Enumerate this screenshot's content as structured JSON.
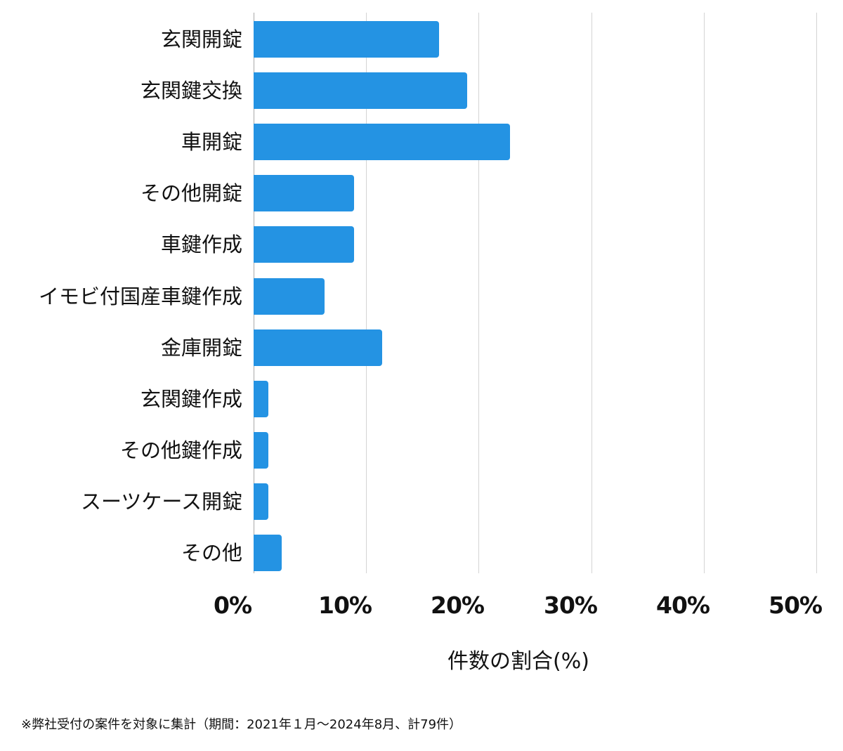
{
  "chart_data": {
    "type": "bar",
    "orientation": "horizontal",
    "title": "",
    "xlabel": "件数の割合(%)",
    "ylabel": "",
    "xlim": [
      0,
      50
    ],
    "x_ticks": [
      "0%",
      "10%",
      "20%",
      "30%",
      "40%",
      "50%"
    ],
    "grid": true,
    "legend": null,
    "bar_color": "#2493e3",
    "categories": [
      "玄関開錠",
      "玄関鍵交換",
      "車開錠",
      "その他開錠",
      "車鍵作成",
      "イモビ付国産車鍵作成",
      "金庫開錠",
      "玄関鍵作成",
      "その他鍵作成",
      "スーツケース開錠",
      "その他"
    ],
    "values": [
      16.5,
      19.0,
      22.8,
      8.9,
      8.9,
      6.3,
      11.4,
      1.3,
      1.3,
      1.3,
      2.5
    ],
    "counts_estimated": [
      13,
      15,
      18,
      7,
      7,
      5,
      9,
      1,
      1,
      1,
      2
    ],
    "total": 79,
    "footnote": "※弊社受付の案件を対象に集計（期間：2021年１月～2024年8月、計79件）"
  },
  "labels": {
    "x_axis_title": "件数の割合(%)",
    "footnote": "※弊社受付の案件を対象に集計（期間：2021年１月～2024年8月、計79件）"
  }
}
